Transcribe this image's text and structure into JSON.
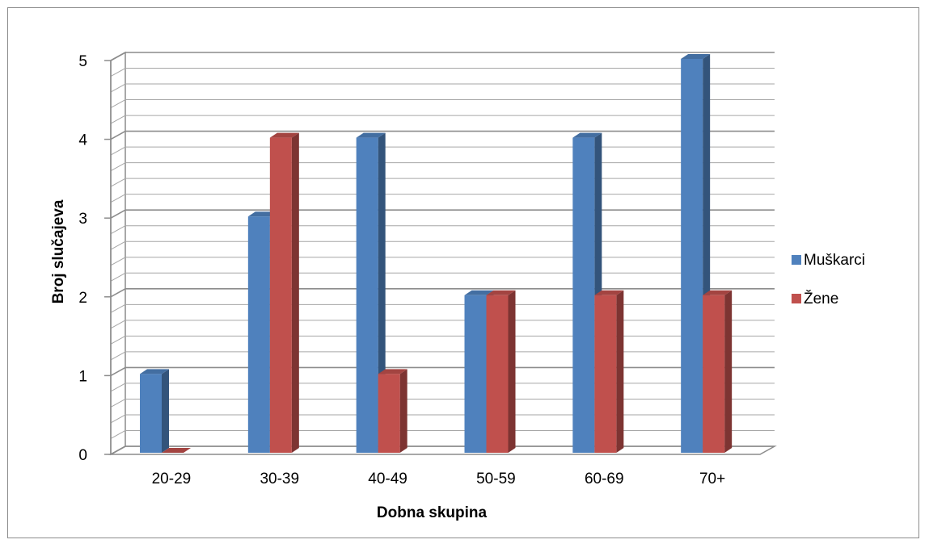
{
  "chart_data": {
    "type": "bar",
    "style": "3d-clustered-column",
    "categories": [
      "20-29",
      "30-39",
      "40-49",
      "50-59",
      "60-69",
      "70+"
    ],
    "series": [
      {
        "name": "Muškarci",
        "values": [
          1,
          3,
          4,
          2,
          4,
          5
        ],
        "color": "#4f81bd"
      },
      {
        "name": "Žene",
        "values": [
          0,
          4,
          1,
          2,
          2,
          2
        ],
        "color": "#c0504d"
      }
    ],
    "xlabel": "Dobna skupina",
    "ylabel": "Broj slučajeva",
    "yticks": [
      "0",
      "1",
      "2",
      "3",
      "4",
      "5"
    ],
    "ylim": [
      0,
      5
    ],
    "grid": true,
    "legend_position": "right"
  }
}
